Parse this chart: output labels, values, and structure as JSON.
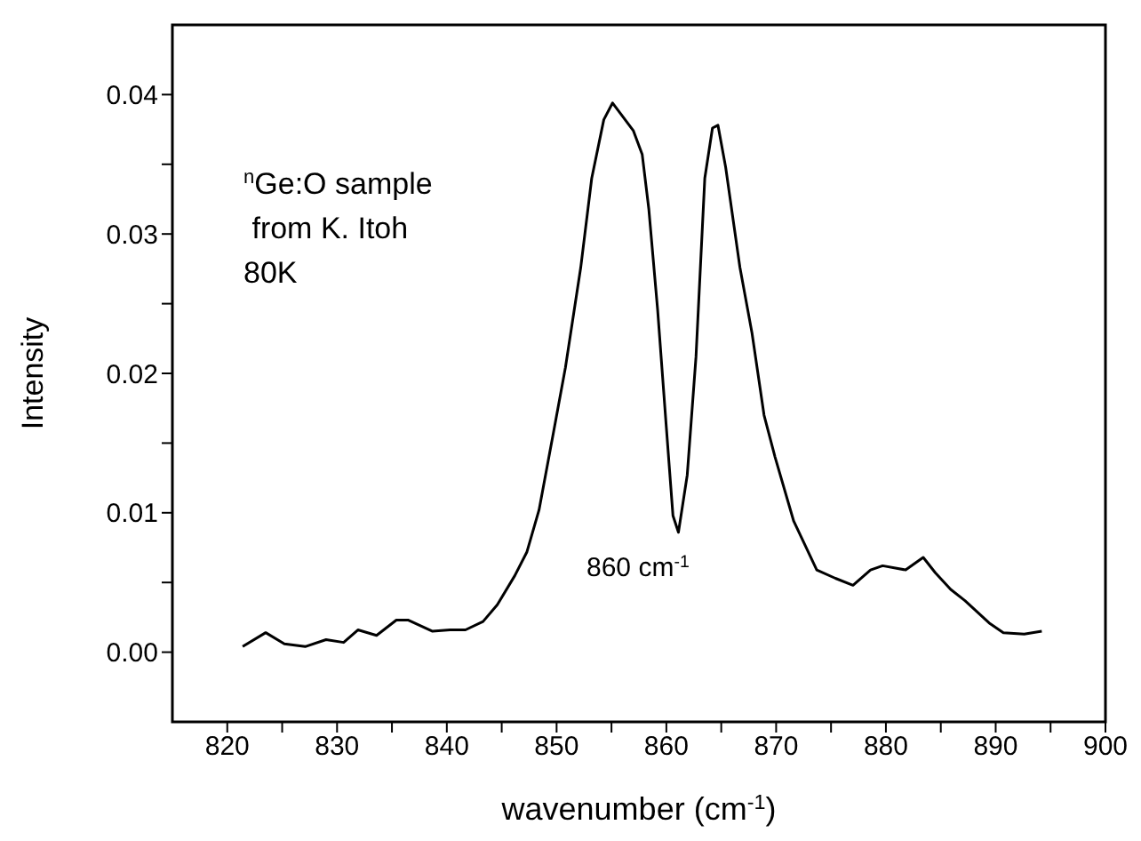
{
  "chart_data": {
    "type": "line",
    "xlabel": "wavenumber (cm$^{-1}$)",
    "ylabel": "Intensity",
    "annotations": [
      "$^{n}$Ge:O sample",
      " from K. Itoh",
      "80K",
      "860 cm$^{-1}$"
    ],
    "series": [
      {
        "color": "#000000",
        "x": [
          821.4,
          823.5,
          825.2,
          827.1,
          829.0,
          830.6,
          831.9,
          833.6,
          835.4,
          836.5,
          838.7,
          840.3,
          841.7,
          843.3,
          844.6,
          846.2,
          847.3,
          848.4,
          849.7,
          850.8,
          852.2,
          853.2,
          854.3,
          855.1,
          857.0,
          857.8,
          858.4,
          859.2,
          860.0,
          860.6,
          861.1,
          861.9,
          862.7,
          863.5,
          864.2,
          864.7,
          865.4,
          866.7,
          867.8,
          868.9,
          869.9,
          871.6,
          873.7,
          875.4,
          877.0,
          878.6,
          879.7,
          881.8,
          883.4,
          884.5,
          885.9,
          887.2,
          889.4,
          890.7,
          892.6,
          894.2
        ],
        "values": [
          0.0004,
          0.0014,
          0.0006,
          0.0004,
          0.0009,
          0.0007,
          0.0016,
          0.0012,
          0.0023,
          0.0023,
          0.0015,
          0.0016,
          0.0016,
          0.0022,
          0.0034,
          0.0055,
          0.0072,
          0.0102,
          0.0157,
          0.0204,
          0.0276,
          0.034,
          0.0382,
          0.0394,
          0.0374,
          0.0357,
          0.0318,
          0.0246,
          0.0161,
          0.0098,
          0.0086,
          0.0127,
          0.0212,
          0.034,
          0.0376,
          0.0378,
          0.0348,
          0.0276,
          0.0229,
          0.017,
          0.014,
          0.0094,
          0.0059,
          0.0053,
          0.0048,
          0.0059,
          0.0062,
          0.0059,
          0.0068,
          0.0057,
          0.0045,
          0.0037,
          0.0021,
          0.0014,
          0.0013,
          0.0015
        ]
      }
    ],
    "xlim": [
      815,
      900
    ],
    "xticks": [
      820,
      {
        "value": 825,
        "label": null
      },
      830,
      {
        "value": 835,
        "label": null
      },
      840,
      {
        "value": 845,
        "label": null
      },
      850,
      {
        "value": 855,
        "label": null
      },
      860,
      {
        "value": 865,
        "label": null
      },
      870,
      {
        "value": 875,
        "label": null
      },
      880,
      {
        "value": 885,
        "label": null
      },
      890,
      {
        "value": 895,
        "label": null
      },
      900
    ],
    "ylim": [
      -0.005,
      0.045
    ],
    "yticks": [
      {
        "value": 0,
        "label": "0.00"
      },
      {
        "value": 0.005,
        "label": null
      },
      {
        "value": 0.01,
        "label": "0.01"
      },
      {
        "value": 0.015,
        "label": null
      },
      {
        "value": 0.02,
        "label": "0.02"
      },
      {
        "value": 0.025,
        "label": null
      },
      {
        "value": 0.03,
        "label": "0.03"
      },
      {
        "value": 0.035,
        "label": null
      },
      {
        "value": 0.04,
        "label": "0.04"
      }
    ],
    "grid": false,
    "legend": false,
    "marker": "none",
    "line_style": "solid"
  }
}
